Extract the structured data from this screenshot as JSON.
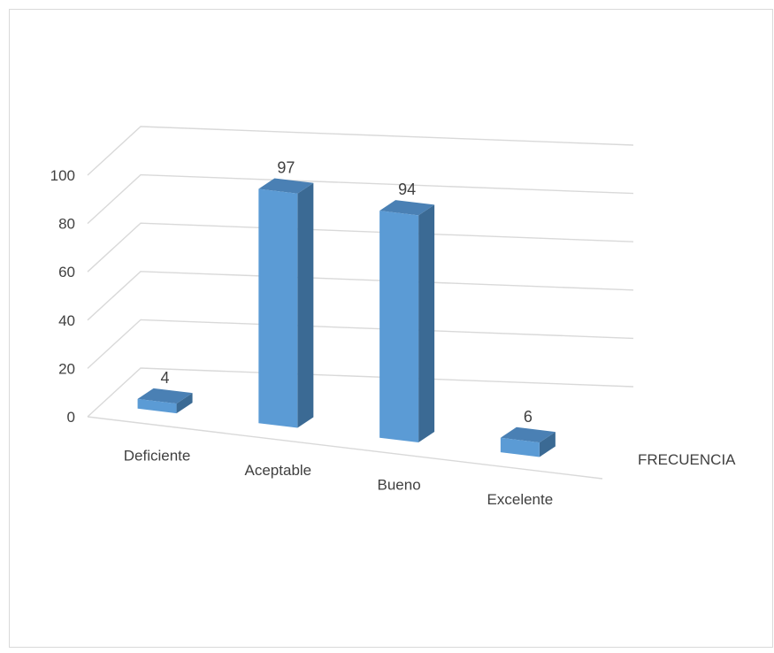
{
  "chart_data": {
    "type": "bar",
    "style": "3d-column",
    "title": "",
    "xlabel": "",
    "ylabel": "",
    "categories": [
      "Deficiente",
      "Aceptable",
      "Bueno",
      "Excelente"
    ],
    "series": [
      {
        "name": "FRECUENCIA",
        "values": [
          4,
          97,
          94,
          6
        ]
      }
    ],
    "ylim": [
      0,
      100
    ],
    "yticks": [
      0,
      20,
      40,
      60,
      80,
      100
    ],
    "grid": true,
    "data_labels": true,
    "colors": {
      "bar_front": "#5b9bd5",
      "bar_side": "#3b6a94",
      "bar_top": "#4a80b4",
      "grid": "#d9d9d9",
      "text": "#404040"
    }
  }
}
